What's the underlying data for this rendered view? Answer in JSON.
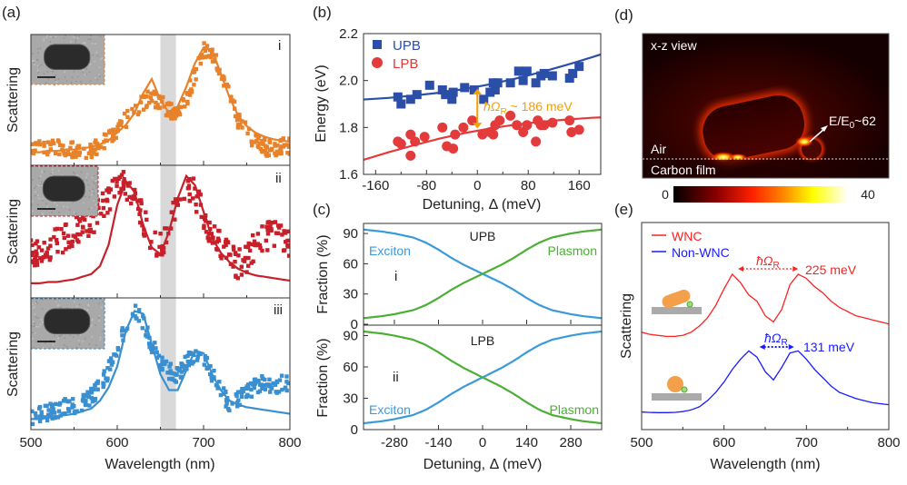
{
  "panel_labels": {
    "a": "(a)",
    "b": "(b)",
    "c": "(c)",
    "d": "(d)",
    "e": "(e)"
  },
  "chart_data": [
    {
      "panel": "a",
      "type": "scatter",
      "xlabel": "Wavelength (nm)",
      "ylabel": "Scattering",
      "xlim": [
        500,
        800
      ],
      "xticks": [
        "500",
        "600",
        "700",
        "800"
      ],
      "shaded_band": [
        650,
        668
      ],
      "x": [
        500,
        510,
        520,
        530,
        540,
        550,
        560,
        570,
        580,
        590,
        600,
        610,
        620,
        630,
        640,
        650,
        660,
        670,
        680,
        690,
        700,
        710,
        720,
        730,
        740,
        750,
        760,
        770,
        780,
        790,
        800
      ],
      "subplots": [
        {
          "label": "i",
          "color": "#e8822a",
          "fit": [
            0.1,
            0.1,
            0.11,
            0.11,
            0.12,
            0.12,
            0.13,
            0.14,
            0.16,
            0.19,
            0.25,
            0.31,
            0.4,
            0.55,
            0.66,
            0.5,
            0.4,
            0.45,
            0.6,
            0.78,
            0.9,
            0.88,
            0.7,
            0.52,
            0.38,
            0.3,
            0.25,
            0.22,
            0.2,
            0.19,
            0.18
          ],
          "measured": [
            0.12,
            0.13,
            0.14,
            0.13,
            0.14,
            0.12,
            0.11,
            0.12,
            0.15,
            0.2,
            0.28,
            0.35,
            0.42,
            0.48,
            0.52,
            0.48,
            0.42,
            0.4,
            0.5,
            0.7,
            0.88,
            0.85,
            0.72,
            0.55,
            0.35,
            0.25,
            0.18,
            0.14,
            0.13,
            0.14,
            0.15
          ]
        },
        {
          "label": "ii",
          "color": "#c8202a",
          "fit": [
            0.11,
            0.11,
            0.12,
            0.12,
            0.13,
            0.14,
            0.16,
            0.18,
            0.24,
            0.4,
            0.7,
            0.88,
            0.8,
            0.55,
            0.38,
            0.33,
            0.5,
            0.75,
            0.92,
            0.85,
            0.65,
            0.45,
            0.34,
            0.27,
            0.22,
            0.19,
            0.17,
            0.16,
            0.15,
            0.14,
            0.13
          ],
          "measured": [
            0.35,
            0.36,
            0.38,
            0.42,
            0.45,
            0.5,
            0.55,
            0.58,
            0.65,
            0.75,
            0.82,
            0.85,
            0.75,
            0.6,
            0.42,
            0.38,
            0.55,
            0.75,
            0.85,
            0.78,
            0.62,
            0.48,
            0.38,
            0.3,
            0.25,
            0.3,
            0.4,
            0.45,
            0.48,
            0.45,
            0.42
          ]
        },
        {
          "label": "iii",
          "color": "#3a8fd0",
          "fit": [
            0.08,
            0.08,
            0.09,
            0.1,
            0.11,
            0.12,
            0.14,
            0.16,
            0.22,
            0.32,
            0.48,
            0.75,
            0.9,
            0.88,
            0.65,
            0.42,
            0.3,
            0.3,
            0.45,
            0.6,
            0.58,
            0.42,
            0.3,
            0.22,
            0.19,
            0.17,
            0.16,
            0.15,
            0.14,
            0.13,
            0.12
          ],
          "measured": [
            0.1,
            0.11,
            0.13,
            0.15,
            0.17,
            0.18,
            0.2,
            0.25,
            0.32,
            0.45,
            0.6,
            0.8,
            0.9,
            0.8,
            0.65,
            0.52,
            0.45,
            0.42,
            0.5,
            0.58,
            0.55,
            0.42,
            0.28,
            0.2,
            0.22,
            0.28,
            0.32,
            0.35,
            0.33,
            0.35,
            0.35
          ]
        }
      ]
    },
    {
      "panel": "b",
      "type": "scatter",
      "xlabel": "Detuning, Δ (meV)",
      "ylabel": "Energy (eV)",
      "xlim": [
        -179,
        194
      ],
      "ylim": [
        1.6,
        2.2
      ],
      "xticks": [
        "-160",
        "-80",
        "0",
        "80",
        "160"
      ],
      "yticks": [
        "1.6",
        "1.8",
        "2.0",
        "2.2"
      ],
      "legend": "top-left",
      "fit_x": [
        -180,
        -140,
        -100,
        -60,
        -20,
        20,
        60,
        100,
        140,
        180,
        195
      ],
      "series": [
        {
          "name": "UPB",
          "marker": "square",
          "color": "#2b4ea8",
          "points": [
            [
              -125,
              1.93
            ],
            [
              -120,
              1.9
            ],
            [
              -105,
              1.92
            ],
            [
              -95,
              1.94
            ],
            [
              -75,
              1.98
            ],
            [
              -55,
              1.96
            ],
            [
              -50,
              1.94
            ],
            [
              -40,
              1.92
            ],
            [
              -38,
              1.95
            ],
            [
              -20,
              1.97
            ],
            [
              -5,
              1.96
            ],
            [
              10,
              1.92
            ],
            [
              20,
              1.95
            ],
            [
              25,
              1.99
            ],
            [
              28,
              1.96
            ],
            [
              32,
              1.99
            ],
            [
              52,
              1.99
            ],
            [
              65,
              2.04
            ],
            [
              72,
              2.0
            ],
            [
              78,
              2.04
            ],
            [
              92,
              1.99
            ],
            [
              100,
              2.02
            ],
            [
              105,
              2.03
            ],
            [
              118,
              2.02
            ],
            [
              145,
              2.01
            ],
            [
              150,
              2.03
            ],
            [
              160,
              2.06
            ]
          ],
          "fit": [
            1.919,
            1.926,
            1.936,
            1.948,
            1.964,
            1.984,
            2.008,
            2.036,
            2.066,
            2.099,
            2.112
          ]
        },
        {
          "name": "LPB",
          "marker": "circle",
          "color": "#e33b3b",
          "points": [
            [
              -125,
              1.74
            ],
            [
              -120,
              1.73
            ],
            [
              -105,
              1.68
            ],
            [
              -105,
              1.77
            ],
            [
              -98,
              1.74
            ],
            [
              -83,
              1.76
            ],
            [
              -55,
              1.8
            ],
            [
              -48,
              1.72
            ],
            [
              -38,
              1.71
            ],
            [
              -35,
              1.77
            ],
            [
              -22,
              1.8
            ],
            [
              -8,
              1.83
            ],
            [
              8,
              1.77
            ],
            [
              20,
              1.78
            ],
            [
              25,
              1.77
            ],
            [
              28,
              1.81
            ],
            [
              35,
              1.83
            ],
            [
              52,
              1.85
            ],
            [
              62,
              1.81
            ],
            [
              72,
              1.78
            ],
            [
              78,
              1.81
            ],
            [
              92,
              1.74
            ],
            [
              95,
              1.83
            ],
            [
              100,
              1.81
            ],
            [
              105,
              1.81
            ],
            [
              118,
              1.82
            ],
            [
              145,
              1.83
            ],
            [
              148,
              1.78
            ],
            [
              160,
              1.79
            ]
          ],
          "fit": [
            1.661,
            1.694,
            1.724,
            1.752,
            1.776,
            1.796,
            1.812,
            1.824,
            1.834,
            1.841,
            1.843
          ]
        }
      ],
      "annotation": {
        "symbol": "ħΩ",
        "sub": "R",
        "text": " ~ 186 meV",
        "color": "#f5a000",
        "at_detuning": 0
      }
    },
    {
      "panel": "c",
      "type": "line",
      "xlabel": "Detuning, Δ  (meV)",
      "ylabel": "Fraction (%)",
      "xlim": [
        -378,
        378
      ],
      "ylim": [
        0,
        100
      ],
      "xticks": [
        "-280",
        "-140",
        "0",
        "140",
        "280"
      ],
      "yticks": [
        "0",
        "30",
        "60",
        "90"
      ],
      "x": [
        -380,
        -320,
        -280,
        -220,
        -180,
        -140,
        -100,
        -60,
        -20,
        0,
        20,
        60,
        100,
        140,
        180,
        220,
        280,
        320,
        380
      ],
      "subplots": [
        {
          "label": "i",
          "title": "UPB",
          "series": [
            {
              "name": "Exciton",
              "color": "#3a9ad9",
              "values": [
                94,
                92,
                90,
                86,
                81,
                74,
                66,
                59,
                53,
                50,
                47,
                41,
                34,
                26,
                19,
                14,
                10,
                8,
                6
              ]
            },
            {
              "name": "Plasmon",
              "color": "#4caf35",
              "values": [
                6,
                8,
                10,
                14,
                19,
                26,
                34,
                41,
                47,
                50,
                53,
                59,
                66,
                74,
                81,
                86,
                90,
                92,
                94
              ]
            }
          ]
        },
        {
          "label": "ii",
          "title": "LPB",
          "series": [
            {
              "name": "Exciton",
              "color": "#3a9ad9",
              "values": [
                6,
                8,
                10,
                14,
                19,
                26,
                34,
                41,
                47,
                50,
                53,
                59,
                66,
                74,
                81,
                86,
                90,
                92,
                94
              ]
            },
            {
              "name": "Plasmon",
              "color": "#4caf35",
              "values": [
                94,
                92,
                90,
                86,
                81,
                74,
                66,
                59,
                53,
                50,
                47,
                41,
                34,
                26,
                19,
                14,
                10,
                8,
                6
              ]
            }
          ]
        }
      ]
    },
    {
      "panel": "d",
      "type": "heatmap",
      "view_label": "x-z view",
      "region_top": "Air",
      "region_bottom": "Carbon film",
      "enhancement": {
        "prefix": "E/E",
        "sub": "0",
        "suffix": "~62"
      },
      "colorbar": {
        "min": "0",
        "max": "40",
        "colors": [
          "#000000",
          "#8b0000",
          "#ff2000",
          "#ff8000",
          "#ffff00",
          "#ffffff"
        ]
      }
    },
    {
      "panel": "e",
      "type": "line",
      "xlabel": "Wavelength (nm)",
      "ylabel": "Scattering",
      "xlim": [
        500,
        800
      ],
      "xticks": [
        "500",
        "600",
        "700",
        "800"
      ],
      "legend": "top-left",
      "x": [
        500,
        510,
        520,
        530,
        540,
        550,
        560,
        570,
        580,
        590,
        600,
        610,
        620,
        630,
        640,
        650,
        660,
        670,
        680,
        690,
        700,
        710,
        720,
        730,
        740,
        750,
        760,
        770,
        780,
        790,
        800
      ],
      "series": [
        {
          "name": "WNC",
          "color": "#ff2020",
          "values": [
            0.47,
            0.46,
            0.455,
            0.45,
            0.45,
            0.455,
            0.47,
            0.5,
            0.54,
            0.6,
            0.68,
            0.75,
            0.71,
            0.65,
            0.62,
            0.55,
            0.52,
            0.58,
            0.7,
            0.75,
            0.73,
            0.69,
            0.66,
            0.62,
            0.59,
            0.57,
            0.55,
            0.54,
            0.53,
            0.52,
            0.51
          ],
          "splitting": {
            "symbol": "ħΩ",
            "sub": "R",
            "value": "225 meV",
            "from": 617,
            "to": 690
          }
        },
        {
          "name": "Non-WNC",
          "color": "#1a1aff",
          "values": [
            0.085,
            0.083,
            0.082,
            0.082,
            0.083,
            0.087,
            0.095,
            0.11,
            0.14,
            0.18,
            0.23,
            0.29,
            0.34,
            0.38,
            0.35,
            0.28,
            0.24,
            0.3,
            0.37,
            0.38,
            0.34,
            0.29,
            0.25,
            0.21,
            0.18,
            0.165,
            0.15,
            0.14,
            0.13,
            0.125,
            0.12
          ],
          "splitting": {
            "symbol": "ħΩ",
            "sub": "R",
            "value": "131 meV",
            "from": 643,
            "to": 685
          }
        }
      ]
    }
  ]
}
